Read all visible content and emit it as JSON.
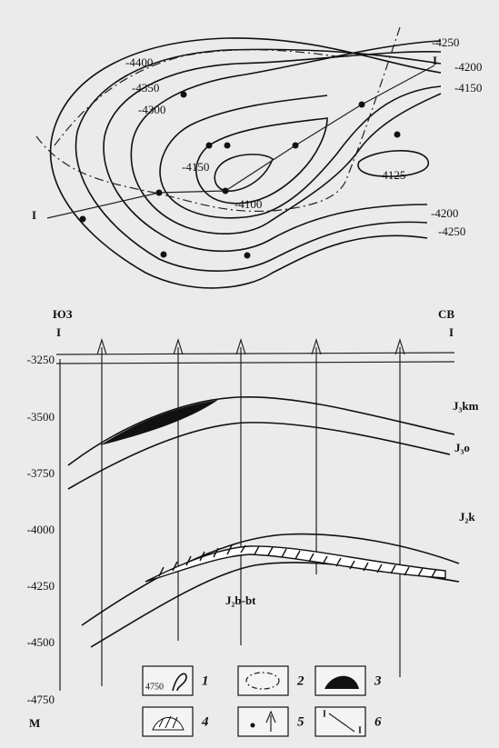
{
  "map": {
    "contour_labels": [
      "-4400",
      "-4350",
      "-4300",
      "-4150",
      "-4100",
      "-4125",
      "-4250",
      "-4200",
      "-4150",
      "-4200",
      "-4250"
    ],
    "profile_ends": [
      "I",
      "I"
    ]
  },
  "section": {
    "left_end": [
      "ЮЗ",
      "I"
    ],
    "right_end": [
      "СВ",
      "I"
    ],
    "depth_labels": [
      "-3250",
      "-3500",
      "-3750",
      "-4000",
      "-4250",
      "-4500",
      "-4750"
    ],
    "unit": "М",
    "layers": [
      "J₃km",
      "J₃o",
      "J₂k",
      "J₂b-bt"
    ]
  },
  "legend": {
    "sample_contour": "4750",
    "items": [
      "1",
      "2",
      "3",
      "4",
      "5",
      "6"
    ],
    "profile_marks": [
      "I",
      "I"
    ]
  }
}
